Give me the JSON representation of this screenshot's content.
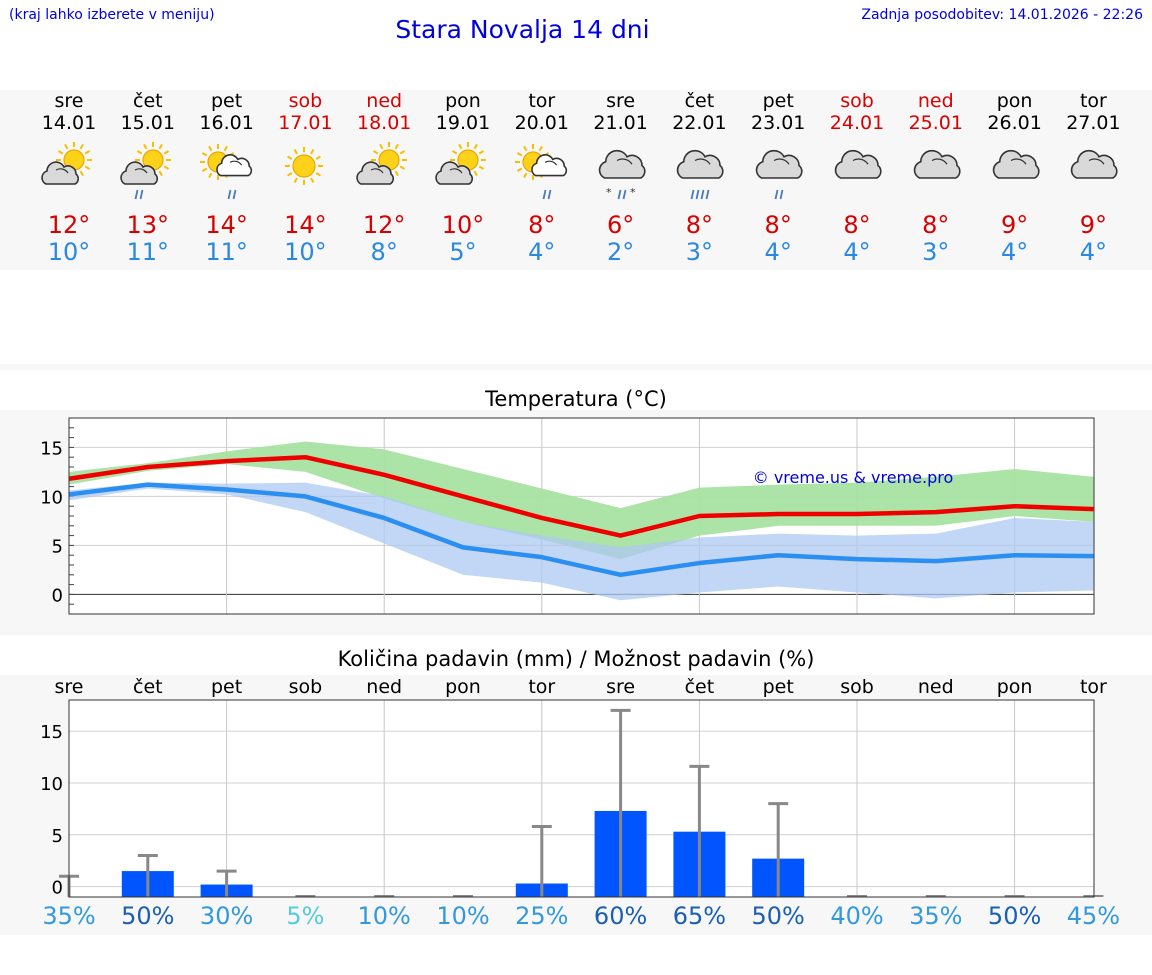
{
  "header": {
    "menu_hint": "(kraj lahko izberete v meniju)",
    "title": "Stara Novalja 14 dni",
    "updated": "Zadnja posodobitev: 14.01.2026 - 22:26"
  },
  "days": [
    {
      "name": "sre",
      "date": "14.01",
      "weekend": false,
      "icon": "partly-sunny-icon",
      "max": "12°",
      "min": "10°",
      "rain": 0,
      "snow": false
    },
    {
      "name": "čet",
      "date": "15.01",
      "weekend": false,
      "icon": "partly-sunny-rain-icon",
      "max": "13°",
      "min": "11°",
      "rain": 2,
      "snow": false
    },
    {
      "name": "pet",
      "date": "16.01",
      "weekend": false,
      "icon": "sun-cloud-rain-icon",
      "max": "14°",
      "min": "11°",
      "rain": 2,
      "snow": false
    },
    {
      "name": "sob",
      "date": "17.01",
      "weekend": true,
      "icon": "sunny-icon",
      "max": "14°",
      "min": "10°",
      "rain": 0,
      "snow": false
    },
    {
      "name": "ned",
      "date": "18.01",
      "weekend": true,
      "icon": "partly-sunny-icon",
      "max": "12°",
      "min": "8°",
      "rain": 0,
      "snow": false
    },
    {
      "name": "pon",
      "date": "19.01",
      "weekend": false,
      "icon": "partly-sunny-icon",
      "max": "10°",
      "min": "5°",
      "rain": 0,
      "snow": false
    },
    {
      "name": "tor",
      "date": "20.01",
      "weekend": false,
      "icon": "sun-cloud-rain-icon",
      "max": "8°",
      "min": "4°",
      "rain": 2,
      "snow": false
    },
    {
      "name": "sre",
      "date": "21.01",
      "weekend": false,
      "icon": "cloud-sleet-icon",
      "max": "6°",
      "min": "2°",
      "rain": 2,
      "snow": true
    },
    {
      "name": "čet",
      "date": "22.01",
      "weekend": false,
      "icon": "cloud-heavy-rain-icon",
      "max": "8°",
      "min": "3°",
      "rain": 4,
      "snow": false
    },
    {
      "name": "pet",
      "date": "23.01",
      "weekend": false,
      "icon": "cloud-rain-icon",
      "max": "8°",
      "min": "4°",
      "rain": 2,
      "snow": false
    },
    {
      "name": "sob",
      "date": "24.01",
      "weekend": true,
      "icon": "cloudy-icon",
      "max": "8°",
      "min": "4°",
      "rain": 0,
      "snow": false
    },
    {
      "name": "ned",
      "date": "25.01",
      "weekend": true,
      "icon": "cloudy-icon",
      "max": "8°",
      "min": "3°",
      "rain": 0,
      "snow": false
    },
    {
      "name": "pon",
      "date": "26.01",
      "weekend": false,
      "icon": "cloudy-icon",
      "max": "9°",
      "min": "4°",
      "rain": 0,
      "snow": false
    },
    {
      "name": "tor",
      "date": "27.01",
      "weekend": false,
      "icon": "cloudy-icon",
      "max": "9°",
      "min": "4°",
      "rain": 0,
      "snow": false
    }
  ],
  "temp_chart": {
    "title": "Temperatura (°C)",
    "watermark": "© vreme.us & vreme.pro",
    "colors": {
      "max": "#ee0000",
      "min": "#2a8ff0",
      "max_band": "#a8e3a2",
      "min_band": "#aec8f2",
      "overlap": "#7cc4a8"
    }
  },
  "precip_chart": {
    "title": "Količina padavin (mm) / Možnost padavin (%)",
    "colors": {
      "bar": "#0055ff",
      "whisker": "#888888"
    }
  },
  "chart_data": [
    {
      "type": "line",
      "title": "Temperatura (°C)",
      "categories": [
        "14.01",
        "15.01",
        "16.01",
        "17.01",
        "18.01",
        "19.01",
        "20.01",
        "21.01",
        "22.01",
        "23.01",
        "24.01",
        "25.01",
        "26.01",
        "27.01"
      ],
      "ylim": [
        -2,
        18
      ],
      "yticks": [
        0,
        5,
        10,
        15
      ],
      "series": [
        {
          "name": "max",
          "values": [
            11.8,
            13.0,
            13.6,
            14.0,
            12.2,
            10.0,
            7.8,
            6.0,
            8.0,
            8.2,
            8.2,
            8.4,
            9.0,
            8.7
          ]
        },
        {
          "name": "min",
          "values": [
            10.2,
            11.2,
            10.7,
            10.0,
            7.8,
            4.8,
            3.8,
            2.0,
            3.2,
            4.0,
            3.6,
            3.4,
            4.0,
            3.9
          ]
        },
        {
          "name": "max_low",
          "values": [
            11.2,
            12.6,
            13.3,
            12.5,
            9.8,
            7.4,
            5.6,
            3.6,
            6.0,
            7.0,
            7.0,
            7.0,
            8.0,
            7.4
          ]
        },
        {
          "name": "max_high",
          "values": [
            12.5,
            13.4,
            14.6,
            15.6,
            14.8,
            12.8,
            10.8,
            8.8,
            10.9,
            11.2,
            11.4,
            12.0,
            12.8,
            12.0
          ]
        },
        {
          "name": "min_low",
          "values": [
            9.6,
            10.8,
            10.2,
            8.4,
            5.2,
            2.0,
            1.2,
            -0.6,
            0.2,
            0.8,
            0.2,
            -0.4,
            0.2,
            0.4
          ]
        },
        {
          "name": "min_high",
          "values": [
            10.6,
            11.4,
            11.3,
            11.4,
            10.0,
            7.4,
            6.0,
            4.8,
            5.8,
            6.2,
            6.0,
            6.2,
            7.8,
            7.4
          ]
        }
      ]
    },
    {
      "type": "bar",
      "title": "Količina padavin (mm) / Možnost padavin (%)",
      "categories": [
        "sre",
        "čet",
        "pet",
        "sob",
        "ned",
        "pon",
        "tor",
        "sre",
        "čet",
        "pet",
        "sob",
        "ned",
        "pon",
        "tor"
      ],
      "ylim": [
        -1,
        18
      ],
      "yticks": [
        0,
        5,
        10,
        15
      ],
      "values": [
        0,
        1.5,
        0.2,
        0,
        0,
        0,
        0.3,
        7.3,
        5.3,
        2.7,
        0,
        0,
        0,
        0
      ],
      "max_values": [
        1.0,
        3.0,
        1.5,
        0,
        0,
        0,
        5.8,
        17.0,
        11.6,
        8.0,
        0,
        0,
        0,
        0
      ],
      "probability": [
        "35%",
        "50%",
        "30%",
        "5%",
        "10%",
        "10%",
        "25%",
        "60%",
        "65%",
        "50%",
        "40%",
        "35%",
        "50%",
        "45%"
      ],
      "probability_values": [
        35,
        50,
        30,
        5,
        10,
        10,
        25,
        60,
        65,
        50,
        40,
        35,
        50,
        45
      ]
    }
  ]
}
